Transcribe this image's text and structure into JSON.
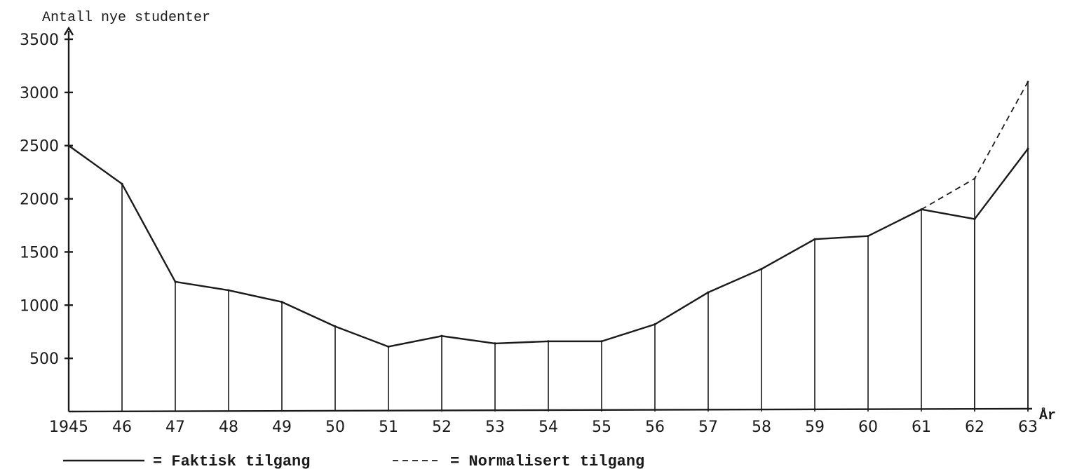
{
  "chart_data": {
    "type": "line",
    "ylabel": "Antall nye studenter",
    "xlabel": "År",
    "ylim": [
      0,
      3500
    ],
    "yticks": [
      500,
      1000,
      1500,
      2000,
      2500,
      3000,
      3500
    ],
    "x_tick_labels": [
      "1945",
      "46",
      "47",
      "48",
      "49",
      "50",
      "51",
      "52",
      "53",
      "54",
      "55",
      "56",
      "57",
      "58",
      "59",
      "60",
      "61",
      "62",
      "63"
    ],
    "x": [
      1945,
      1946,
      1947,
      1948,
      1949,
      1950,
      1951,
      1952,
      1953,
      1954,
      1955,
      1956,
      1957,
      1958,
      1959,
      1960,
      1961,
      1962,
      1963
    ],
    "series": [
      {
        "name": "Faktisk tilgang",
        "style": "solid",
        "values": [
          2500,
          2140,
          1220,
          1140,
          1030,
          800,
          610,
          710,
          640,
          660,
          660,
          820,
          1120,
          1340,
          1620,
          1650,
          1900,
          1810,
          2470
        ]
      },
      {
        "name": "Normalisert tilgang",
        "style": "dashed",
        "x": [
          1961,
          1962,
          1963
        ],
        "values": [
          1900,
          2190,
          3100
        ]
      }
    ],
    "drop_lines": true,
    "grid": false,
    "legend_position": "bottom"
  }
}
